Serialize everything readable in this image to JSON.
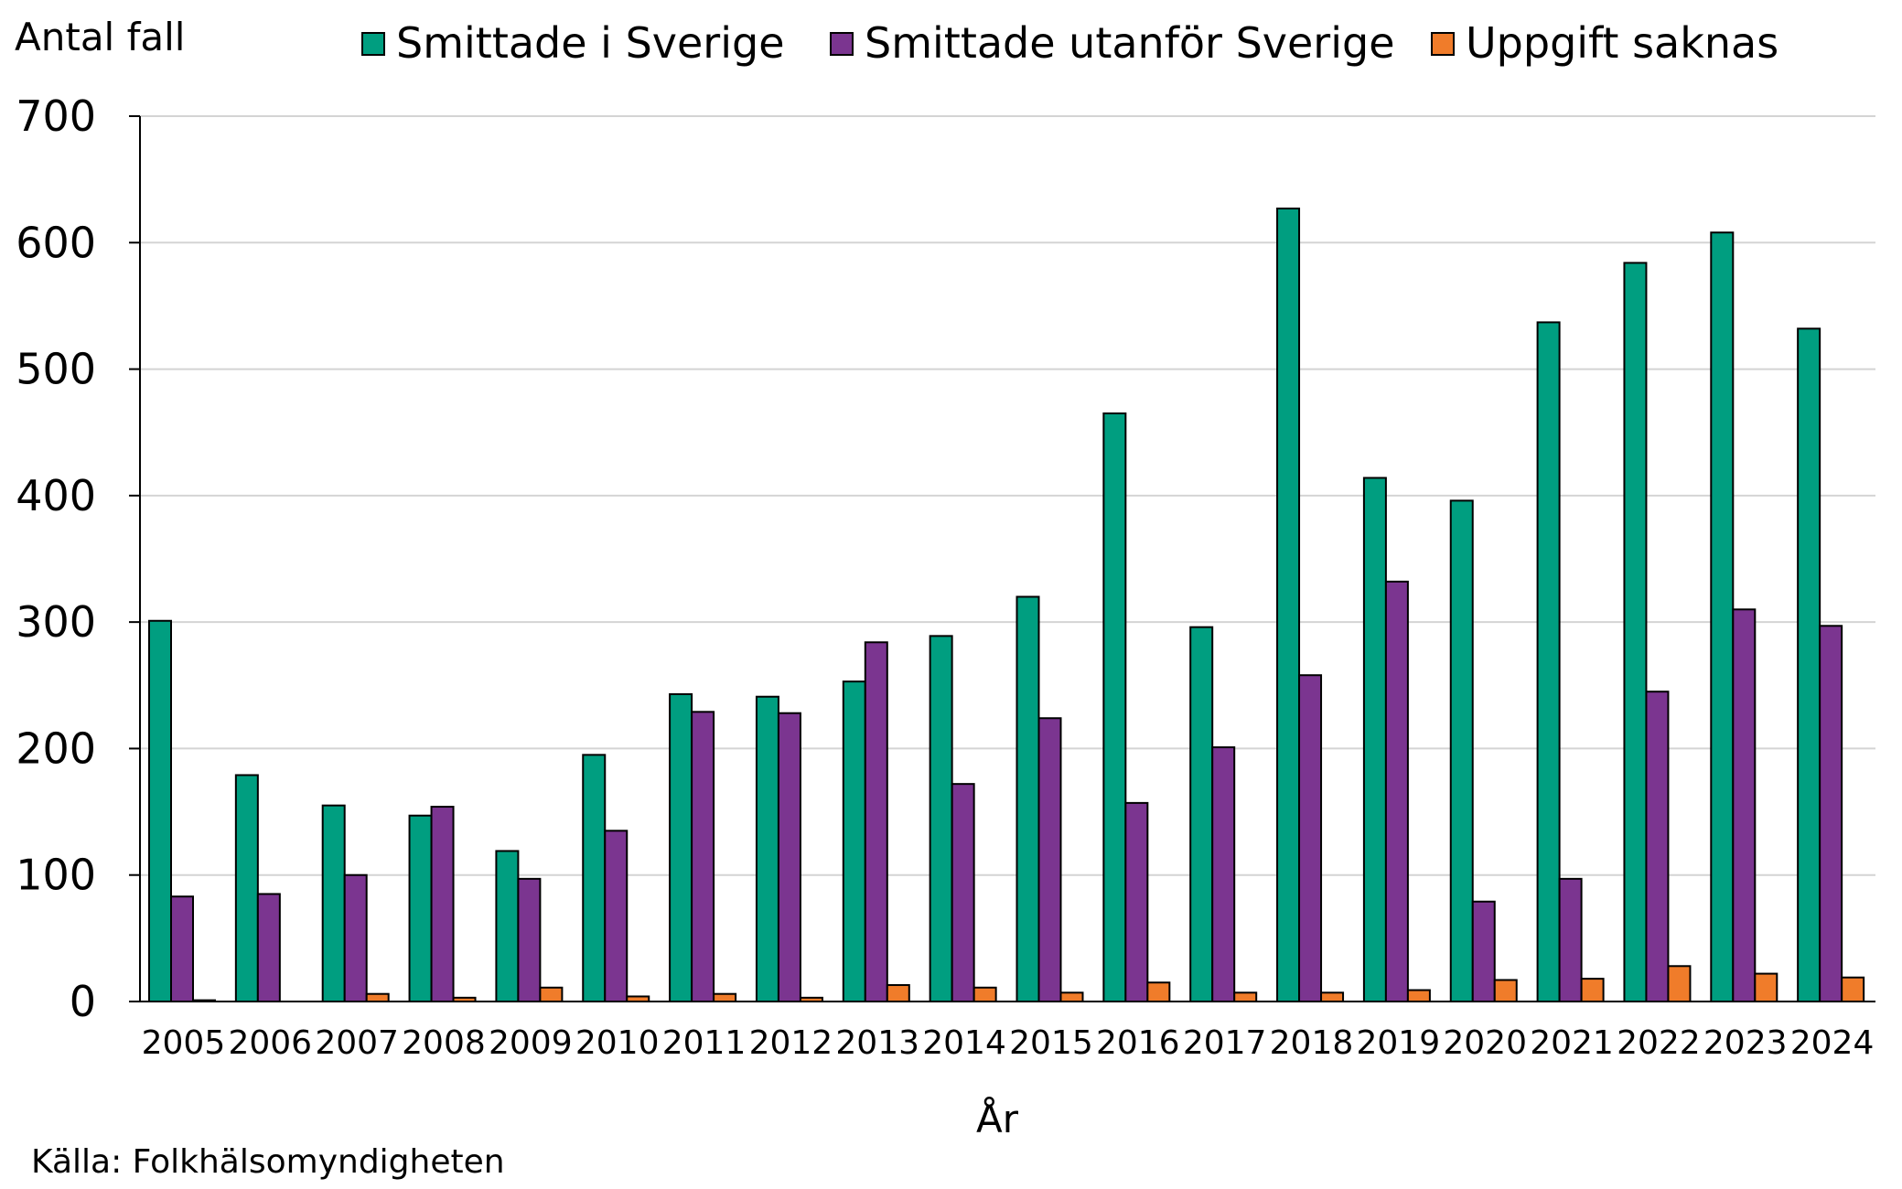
{
  "chart_data": {
    "type": "bar",
    "ylabel": "Antal fall",
    "xlabel": "År",
    "source": "Källa: Folkhälsomyndigheten",
    "ylim": [
      0,
      700
    ],
    "yticks": [
      0,
      100,
      200,
      300,
      400,
      500,
      600,
      700
    ],
    "grid": true,
    "legend_position": "top",
    "categories": [
      "2005",
      "2006",
      "2007",
      "2008",
      "2009",
      "2010",
      "2011",
      "2012",
      "2013",
      "2014",
      "2015",
      "2016",
      "2017",
      "2018",
      "2019",
      "2020",
      "2021",
      "2022",
      "2023",
      "2024"
    ],
    "series": [
      {
        "name": "Smittade i Sverige",
        "color": "#009E80",
        "values": [
          301,
          179,
          155,
          147,
          119,
          195,
          243,
          241,
          253,
          289,
          320,
          465,
          296,
          627,
          414,
          396,
          537,
          584,
          608,
          532
        ]
      },
      {
        "name": "Smittade utanför Sverige",
        "color": "#7B3590",
        "values": [
          83,
          85,
          100,
          154,
          97,
          135,
          229,
          228,
          284,
          172,
          224,
          157,
          201,
          258,
          332,
          79,
          97,
          245,
          310,
          297
        ]
      },
      {
        "name": "Uppgift saknas",
        "color": "#F07C2A",
        "values": [
          1,
          0,
          6,
          3,
          11,
          4,
          6,
          3,
          13,
          11,
          7,
          15,
          7,
          7,
          9,
          17,
          18,
          28,
          22,
          19
        ]
      }
    ]
  }
}
